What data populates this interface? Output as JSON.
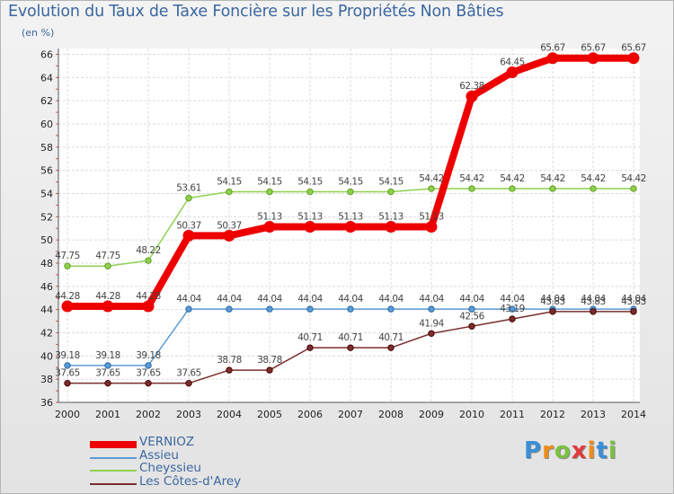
{
  "title": "Evolution du Taux de Taxe Foncière sur les Propriétés Non Bâties",
  "unit_label": "(en %)",
  "logo": {
    "text": "Proxiti",
    "letters": [
      "P",
      "r",
      "o",
      "x",
      "i",
      "t",
      "i"
    ],
    "colors": [
      "#3b8fd8",
      "#f08c1a",
      "#7bc142",
      "#e23b3b",
      "#f08c1a",
      "#3b8fd8",
      "#7bc142"
    ]
  },
  "chart_data": {
    "type": "line",
    "title": "Evolution du Taux de Taxe Foncière sur les Propriétés Non Bâties",
    "xlabel": "",
    "ylabel": "(en %)",
    "ylim": [
      36,
      66.5
    ],
    "yticks": [
      36,
      38,
      40,
      42,
      44,
      46,
      48,
      50,
      52,
      54,
      56,
      58,
      60,
      62,
      64,
      66
    ],
    "categories": [
      "2000",
      "2001",
      "2002",
      "2003",
      "2004",
      "2005",
      "2006",
      "2007",
      "2008",
      "2009",
      "2010",
      "2011",
      "2012",
      "2013",
      "2014"
    ],
    "grid": true,
    "series": [
      {
        "name": "VERNIOZ",
        "color": "#ee0000",
        "values": [
          44.28,
          44.28,
          44.28,
          50.37,
          50.37,
          51.13,
          51.13,
          51.13,
          51.13,
          51.13,
          62.38,
          64.45,
          65.67,
          65.67,
          65.67
        ],
        "labels": [
          "44.28",
          "44.28",
          "44.28",
          "50.37",
          "50.37",
          "51.13",
          "51.13",
          "51.13",
          "51.13",
          "51.13",
          "62.38",
          "64.45",
          "65.67",
          "65.67",
          "65.67"
        ]
      },
      {
        "name": "Assieu",
        "color": "#5b9bd5",
        "values": [
          39.18,
          39.18,
          39.18,
          44.04,
          44.04,
          44.04,
          44.04,
          44.04,
          44.04,
          44.04,
          44.04,
          44.04,
          44.04,
          44.04,
          44.04
        ],
        "labels": [
          "39.18",
          "39.18",
          "39.18",
          "44.04",
          "44.04",
          "44.04",
          "44.04",
          "44.04",
          "44.04",
          "44.04",
          "44.04",
          "44.04",
          "44.04",
          "44.04",
          "44.04"
        ]
      },
      {
        "name": "Cheyssieu",
        "color": "#8fd14f",
        "values": [
          47.75,
          47.75,
          48.22,
          53.61,
          54.15,
          54.15,
          54.15,
          54.15,
          54.15,
          54.42,
          54.42,
          54.42,
          54.42,
          54.42,
          54.42
        ],
        "labels": [
          "47.75",
          "47.75",
          "48.22",
          "53.61",
          "54.15",
          "54.15",
          "54.15",
          "54.15",
          "54.15",
          "54.42",
          "54.42",
          "54.42",
          "54.42",
          "54.42",
          "54.42"
        ]
      },
      {
        "name": "Les Côtes-d'Arey",
        "color": "#7a2e2e",
        "values": [
          37.65,
          37.65,
          37.65,
          37.65,
          38.78,
          38.78,
          40.71,
          40.71,
          40.71,
          41.94,
          42.56,
          43.19,
          43.83,
          43.83,
          43.83
        ],
        "labels": [
          "37.65",
          "37.65",
          "37.65",
          "37.65",
          "38.78",
          "38.78",
          "40.71",
          "40.71",
          "40.71",
          "41.94",
          "42.56",
          "43.19",
          "43.83",
          "43.83",
          "43.83"
        ]
      }
    ],
    "legend": "bottom-left"
  }
}
